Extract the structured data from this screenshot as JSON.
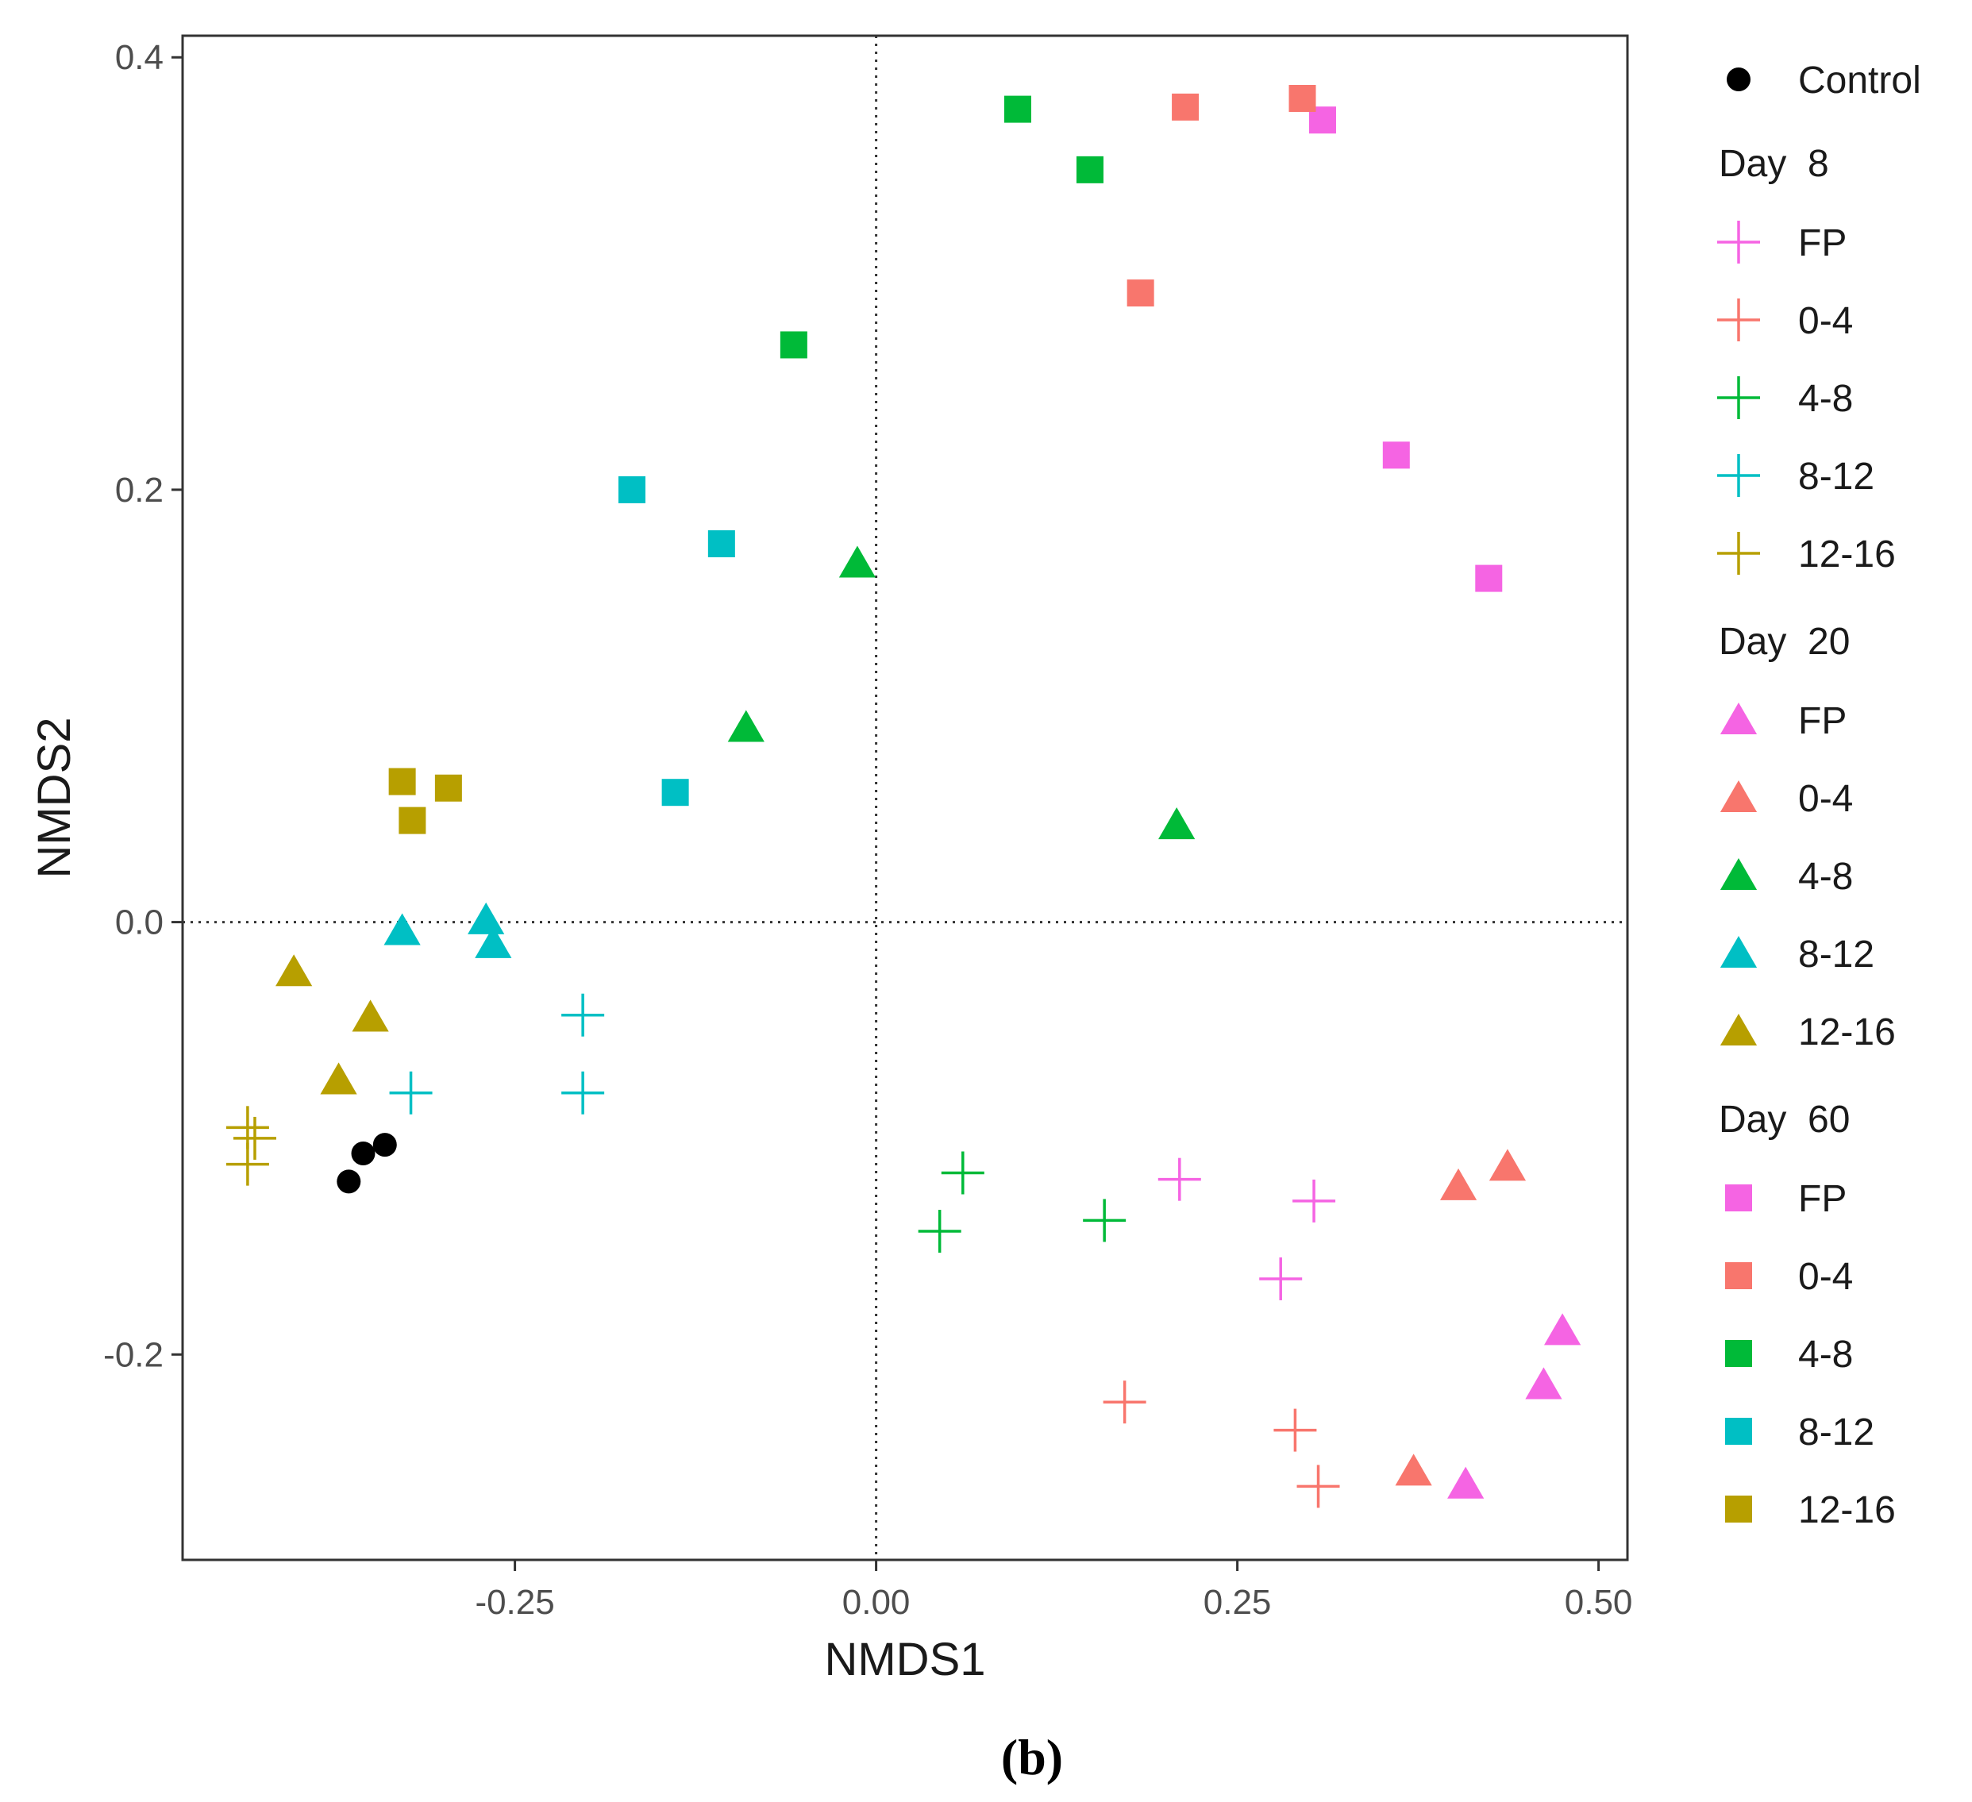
{
  "chart_data": {
    "type": "scatter",
    "title": "",
    "xlabel": "NMDS1",
    "ylabel": "NMDS2",
    "xlim": [
      -0.48,
      0.52
    ],
    "ylim": [
      -0.295,
      0.41
    ],
    "xticks": [
      -0.25,
      0.0,
      0.25,
      0.5
    ],
    "xtick_labels": [
      "-0.25",
      "0.00",
      "0.25",
      "0.50"
    ],
    "yticks": [
      -0.2,
      0.0,
      0.2,
      0.4
    ],
    "ytick_labels": [
      "-0.2",
      "0.0",
      "0.2",
      "0.4"
    ],
    "grid": false,
    "reference_lines": {
      "x": 0,
      "y": 0,
      "style": "dotted"
    },
    "panel_label": "(b)",
    "legend_position": "right",
    "colors": {
      "Control": "#000000",
      "FP": "#f564e3",
      "0-4": "#f8766d",
      "4-8": "#00ba38",
      "8-12": "#00bfc4",
      "12-16": "#b79f00"
    },
    "legend": {
      "control": {
        "label": "Control",
        "shape": "circle"
      },
      "groups": [
        {
          "title": "Day  8",
          "shape": "cross",
          "items": [
            "FP",
            "0-4",
            "4-8",
            "8-12",
            "12-16"
          ]
        },
        {
          "title": "Day  20",
          "shape": "triangle",
          "items": [
            "FP",
            "0-4",
            "4-8",
            "8-12",
            "12-16"
          ]
        },
        {
          "title": "Day  60",
          "shape": "square",
          "items": [
            "FP",
            "0-4",
            "4-8",
            "8-12",
            "12-16"
          ]
        }
      ]
    },
    "series": [
      {
        "name": "Control",
        "shape": "circle",
        "color_key": "Control",
        "points": [
          [
            -0.365,
            -0.12
          ],
          [
            -0.355,
            -0.107
          ],
          [
            -0.34,
            -0.103
          ]
        ]
      },
      {
        "name": "Day 8 FP",
        "shape": "cross",
        "color_key": "FP",
        "points": [
          [
            0.21,
            -0.119
          ],
          [
            0.303,
            -0.129
          ],
          [
            0.28,
            -0.165
          ]
        ]
      },
      {
        "name": "Day 8 0-4",
        "shape": "cross",
        "color_key": "0-4",
        "points": [
          [
            0.172,
            -0.222
          ],
          [
            0.29,
            -0.235
          ],
          [
            0.306,
            -0.261
          ]
        ]
      },
      {
        "name": "Day 8 4-8",
        "shape": "cross",
        "color_key": "4-8",
        "points": [
          [
            0.06,
            -0.116
          ],
          [
            0.044,
            -0.143
          ],
          [
            0.158,
            -0.138
          ]
        ]
      },
      {
        "name": "Day 8 8-12",
        "shape": "cross",
        "color_key": "8-12",
        "points": [
          [
            -0.203,
            -0.043
          ],
          [
            -0.203,
            -0.079
          ],
          [
            -0.322,
            -0.079
          ]
        ]
      },
      {
        "name": "Day 8 12-16",
        "shape": "cross",
        "color_key": "12-16",
        "points": [
          [
            -0.435,
            -0.095
          ],
          [
            -0.43,
            -0.1
          ],
          [
            -0.435,
            -0.112
          ]
        ]
      },
      {
        "name": "Day 20 FP",
        "shape": "triangle",
        "color_key": "FP",
        "points": [
          [
            0.475,
            -0.189
          ],
          [
            0.462,
            -0.214
          ],
          [
            0.408,
            -0.26
          ]
        ]
      },
      {
        "name": "Day 20 0-4",
        "shape": "triangle",
        "color_key": "0-4",
        "points": [
          [
            0.437,
            -0.113
          ],
          [
            0.403,
            -0.122
          ],
          [
            0.372,
            -0.254
          ]
        ]
      },
      {
        "name": "Day 20 4-8",
        "shape": "triangle",
        "color_key": "4-8",
        "points": [
          [
            -0.013,
            0.166
          ],
          [
            -0.09,
            0.09
          ],
          [
            0.208,
            0.045
          ]
        ]
      },
      {
        "name": "Day 20 8-12",
        "shape": "triangle",
        "color_key": "8-12",
        "points": [
          [
            -0.328,
            -0.004
          ],
          [
            -0.27,
            0.001
          ],
          [
            -0.265,
            -0.01
          ]
        ]
      },
      {
        "name": "Day 20 12-16",
        "shape": "triangle",
        "color_key": "12-16",
        "points": [
          [
            -0.403,
            -0.023
          ],
          [
            -0.35,
            -0.044
          ],
          [
            -0.372,
            -0.073
          ]
        ]
      },
      {
        "name": "Day 60 FP",
        "shape": "square",
        "color_key": "FP",
        "points": [
          [
            0.309,
            0.371
          ],
          [
            0.36,
            0.216
          ],
          [
            0.424,
            0.159
          ]
        ]
      },
      {
        "name": "Day 60 0-4",
        "shape": "square",
        "color_key": "0-4",
        "points": [
          [
            0.214,
            0.377
          ],
          [
            0.295,
            0.381
          ],
          [
            0.183,
            0.291
          ]
        ]
      },
      {
        "name": "Day 60 4-8",
        "shape": "square",
        "color_key": "4-8",
        "points": [
          [
            0.098,
            0.376
          ],
          [
            0.148,
            0.348
          ],
          [
            -0.057,
            0.267
          ]
        ]
      },
      {
        "name": "Day 60 8-12",
        "shape": "square",
        "color_key": "8-12",
        "points": [
          [
            -0.169,
            0.2
          ],
          [
            -0.107,
            0.175
          ],
          [
            -0.139,
            0.06
          ]
        ]
      },
      {
        "name": "Day 60 12-16",
        "shape": "square",
        "color_key": "12-16",
        "points": [
          [
            -0.328,
            0.065
          ],
          [
            -0.296,
            0.062
          ],
          [
            -0.321,
            0.047
          ]
        ]
      }
    ]
  }
}
